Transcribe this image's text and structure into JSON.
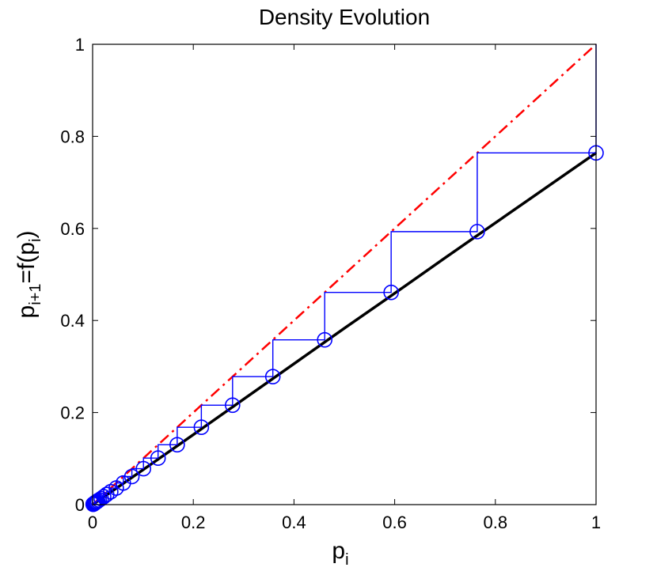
{
  "chart_data": {
    "type": "line",
    "title": "Density Evolution",
    "xlabel": {
      "base": "p",
      "sub": "i"
    },
    "ylabel": {
      "p1": "p",
      "sub1": "i+1",
      "mid": "=f(p",
      "sub2": "i",
      "end": ")"
    },
    "xlim": [
      0,
      1
    ],
    "ylim": [
      0,
      1
    ],
    "xticks": [
      0,
      0.2,
      0.4,
      0.6,
      0.8,
      1
    ],
    "yticks": [
      0,
      0.2,
      0.4,
      0.6,
      0.8,
      1
    ],
    "xtick_labels": [
      "0",
      "0.2",
      "0.4",
      "0.6",
      "0.8",
      "1"
    ],
    "ytick_labels": [
      "0",
      "0.2",
      "0.4",
      "0.6",
      "0.8",
      "1"
    ],
    "grid": false,
    "series": [
      {
        "style": "solid",
        "color": "#000000",
        "x": [
          0,
          0.1,
          0.2,
          0.3,
          0.4,
          0.5,
          0.6,
          0.7,
          0.8,
          0.9,
          1.0
        ],
        "y": [
          0,
          0.0755,
          0.152,
          0.229,
          0.306,
          0.383,
          0.459,
          0.536,
          0.612,
          0.688,
          0.764
        ]
      },
      {
        "style": "dash-dot",
        "color": "#ff0000",
        "x": [
          0,
          1
        ],
        "y": [
          0,
          1
        ]
      },
      {
        "style": "staircase-markers",
        "color": "#0000ff",
        "marker": "circle",
        "x": [
          1.0,
          0.764,
          0.593,
          0.461,
          0.358,
          0.278,
          0.216,
          0.168,
          0.13,
          0.101,
          0.078,
          0.061,
          0.047,
          0.036,
          0.028,
          0.022,
          0.017,
          0.013,
          0.01,
          0.008,
          0.006,
          0.005,
          0.004,
          0.003,
          0.002,
          0.0015,
          0.001
        ],
        "y": [
          0.764,
          0.593,
          0.461,
          0.358,
          0.278,
          0.216,
          0.168,
          0.13,
          0.101,
          0.078,
          0.061,
          0.047,
          0.036,
          0.028,
          0.022,
          0.017,
          0.013,
          0.01,
          0.008,
          0.006,
          0.005,
          0.004,
          0.003,
          0.002,
          0.0015,
          0.001,
          0.0008
        ]
      }
    ]
  }
}
